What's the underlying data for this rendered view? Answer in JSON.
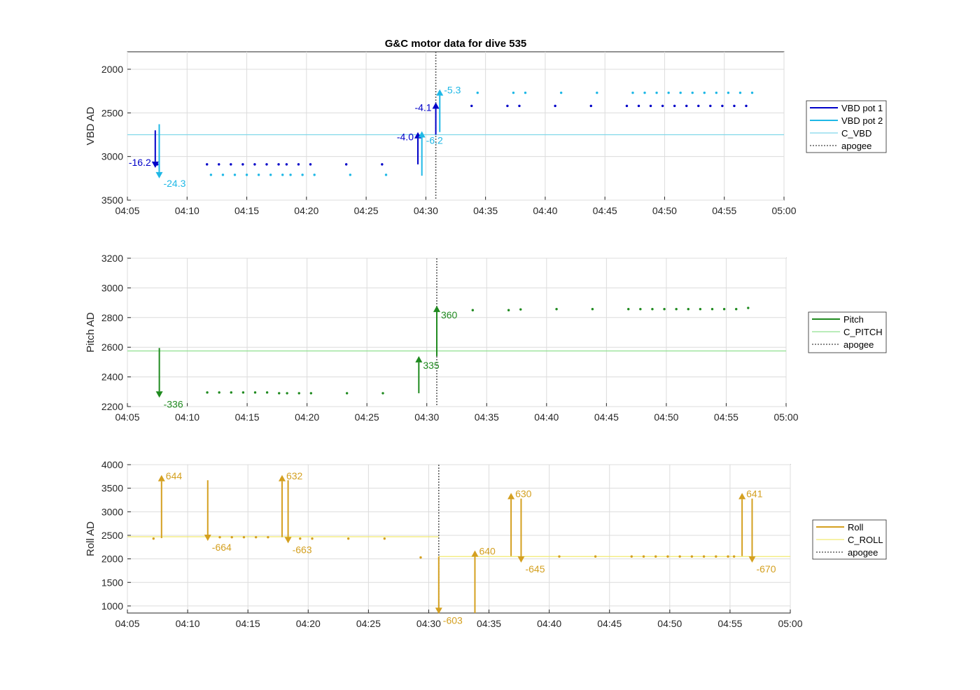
{
  "chart_data": [
    {
      "type": "scatter",
      "title": "G&C motor data for dive 535",
      "ylabel": "VBD AD",
      "ylim": [
        1800,
        3500
      ],
      "y_reversed": true,
      "yticks": [
        "2000",
        "2500",
        "3000",
        "3500"
      ],
      "xlim": [
        "04:05",
        "05:00"
      ],
      "xticks": [
        "04:05",
        "04:10",
        "04:15",
        "04:20",
        "04:25",
        "04:30",
        "04:35",
        "04:40",
        "04:45",
        "04:50",
        "04:55",
        "05:00"
      ],
      "grid": true,
      "legend_position": "right",
      "legend": [
        "VBD pot 1",
        "VBD pot 2",
        "C_VBD",
        "apogee"
      ],
      "colors": {
        "pot1": "#0000c8",
        "pot2": "#1fb8e6",
        "ref": "#7fd8ea",
        "apogee": "#606060"
      },
      "reference_value": 2750,
      "apogee_time": "04:30:50",
      "series": [
        {
          "name": "VBD pot 1",
          "x": [
            "04:07:30",
            "04:11:40",
            "04:12:40",
            "04:13:40",
            "04:14:40",
            "04:15:40",
            "04:16:40",
            "04:17:40",
            "04:18:20",
            "04:19:20",
            "04:20:20",
            "04:23:20",
            "04:26:20",
            "04:33:50",
            "04:36:50",
            "04:37:50",
            "04:40:50",
            "04:43:50",
            "04:46:50",
            "04:47:50",
            "04:48:50",
            "04:49:50",
            "04:50:50",
            "04:51:50",
            "04:52:50",
            "04:53:50",
            "04:54:50",
            "04:55:50",
            "04:56:50"
          ],
          "y": [
            3090,
            3090,
            3090,
            3090,
            3090,
            3090,
            3090,
            3090,
            3090,
            3090,
            3090,
            3090,
            3090,
            2420,
            2420,
            2420,
            2420,
            2420,
            2420,
            2420,
            2420,
            2420,
            2420,
            2420,
            2420,
            2420,
            2420,
            2420,
            2420
          ]
        },
        {
          "name": "VBD pot 2",
          "x": [
            "04:07:40",
            "04:12:00",
            "04:13:00",
            "04:14:00",
            "04:15:00",
            "04:16:00",
            "04:17:00",
            "04:18:00",
            "04:18:40",
            "04:19:40",
            "04:20:40",
            "04:23:40",
            "04:26:40",
            "04:34:20",
            "04:37:20",
            "04:38:20",
            "04:41:20",
            "04:44:20",
            "04:47:20",
            "04:48:20",
            "04:49:20",
            "04:50:20",
            "04:51:20",
            "04:52:20",
            "04:53:20",
            "04:54:20",
            "04:55:20",
            "04:56:20",
            "04:57:20"
          ],
          "y": [
            3210,
            3210,
            3210,
            3210,
            3210,
            3210,
            3210,
            3210,
            3210,
            3210,
            3210,
            3210,
            3210,
            2270,
            2270,
            2270,
            2270,
            2270,
            2270,
            2270,
            2270,
            2270,
            2270,
            2270,
            2270,
            2270,
            2270,
            2270,
            2270
          ]
        }
      ],
      "arrows": [
        {
          "series": "VBD pot 1",
          "x": "04:07:20",
          "y0": 2700,
          "y1": 3130,
          "label": "-16.2",
          "label_side": "left"
        },
        {
          "series": "VBD pot 2",
          "x": "04:07:40",
          "y0": 2630,
          "y1": 3250,
          "label": "-24.3",
          "label_side": "right"
        },
        {
          "series": "VBD pot 1",
          "x": "04:29:20",
          "y0": 3090,
          "y1": 2720,
          "label": "-4.0",
          "label_side": "left"
        },
        {
          "series": "VBD pot 2",
          "x": "04:29:40",
          "y0": 3220,
          "y1": 2710,
          "label": "-6.2",
          "label_side": "right-below"
        },
        {
          "series": "VBD pot 1",
          "x": "04:30:50",
          "y0": 2750,
          "y1": 2380,
          "label": "-4.1",
          "label_side": "left"
        },
        {
          "series": "VBD pot 2",
          "x": "04:31:10",
          "y0": 2720,
          "y1": 2230,
          "label": "-5.3",
          "label_side": "right"
        }
      ]
    },
    {
      "type": "scatter",
      "ylabel": "Pitch AD",
      "ylim": [
        2200,
        3200
      ],
      "yticks": [
        "2200",
        "2400",
        "2600",
        "2800",
        "3000",
        "3200"
      ],
      "xlim": [
        "04:05",
        "05:00"
      ],
      "xticks": [
        "04:05",
        "04:10",
        "04:15",
        "04:20",
        "04:25",
        "04:30",
        "04:35",
        "04:40",
        "04:45",
        "04:50",
        "04:55",
        "05:00"
      ],
      "grid": true,
      "legend_position": "right",
      "legend": [
        "Pitch",
        "C_PITCH",
        "apogee"
      ],
      "colors": {
        "main": "#1f8a1f",
        "ref": "#8fe08f",
        "apogee": "#606060"
      },
      "reference_value": 2575,
      "apogee_time": "04:30:50",
      "series": [
        {
          "name": "Pitch",
          "x": [
            "04:11:40",
            "04:12:40",
            "04:13:40",
            "04:14:40",
            "04:15:40",
            "04:16:40",
            "04:17:40",
            "04:18:20",
            "04:19:20",
            "04:20:20",
            "04:23:20",
            "04:26:20",
            "04:33:50",
            "04:36:50",
            "04:37:50",
            "04:40:50",
            "04:43:50",
            "04:46:50",
            "04:47:50",
            "04:48:50",
            "04:49:50",
            "04:50:50",
            "04:51:50",
            "04:52:50",
            "04:53:50",
            "04:54:50",
            "04:55:50",
            "04:56:50"
          ],
          "y": [
            2295,
            2295,
            2295,
            2295,
            2295,
            2295,
            2290,
            2290,
            2290,
            2290,
            2290,
            2290,
            2850,
            2850,
            2855,
            2857,
            2857,
            2857,
            2857,
            2857,
            2857,
            2857,
            2857,
            2857,
            2857,
            2857,
            2857,
            2865
          ]
        }
      ],
      "arrows": [
        {
          "series": "Pitch",
          "x": "04:07:40",
          "y0": 2595,
          "y1": 2260,
          "label": "-336",
          "label_side": "right-below"
        },
        {
          "series": "Pitch",
          "x": "04:29:20",
          "y0": 2290,
          "y1": 2540,
          "label": "335",
          "label_side": "right-below"
        },
        {
          "series": "Pitch",
          "x": "04:30:50",
          "y0": 2540,
          "y1": 2880,
          "label": "360",
          "label_side": "right-below"
        }
      ]
    },
    {
      "type": "scatter",
      "ylabel": "Roll AD",
      "ylim": [
        850,
        4000
      ],
      "yticks": [
        "1000",
        "1500",
        "2000",
        "2500",
        "3000",
        "3500",
        "4000"
      ],
      "xlim": [
        "04:05",
        "05:00"
      ],
      "xticks": [
        "04:05",
        "04:10",
        "04:15",
        "04:20",
        "04:25",
        "04:30",
        "04:35",
        "04:40",
        "04:45",
        "04:50",
        "04:55",
        "05:00"
      ],
      "grid": true,
      "legend_position": "right",
      "legend": [
        "Roll",
        "C_ROLL",
        "apogee"
      ],
      "colors": {
        "main": "#d4a020",
        "ref": "#f2ea70",
        "apogee": "#606060"
      },
      "apogee_time": "04:30:50",
      "reference_segments": [
        {
          "x0": "04:05",
          "x1": "04:30:50",
          "y": 2470
        },
        {
          "x0": "04:30:50",
          "x1": "05:00",
          "y": 2050
        }
      ],
      "series": [
        {
          "name": "Roll",
          "x": [
            "04:07:10",
            "04:12:40",
            "04:13:40",
            "04:14:40",
            "04:15:40",
            "04:16:40",
            "04:19:20",
            "04:20:20",
            "04:23:20",
            "04:26:20",
            "04:29:20",
            "04:40:50",
            "04:43:50",
            "04:46:50",
            "04:47:50",
            "04:48:50",
            "04:49:50",
            "04:50:50",
            "04:51:50",
            "04:52:50",
            "04:53:50",
            "04:54:50",
            "04:55:20"
          ],
          "y": [
            2430,
            2460,
            2460,
            2460,
            2460,
            2460,
            2430,
            2430,
            2430,
            2430,
            2030,
            2050,
            2050,
            2050,
            2050,
            2050,
            2050,
            2050,
            2050,
            2050,
            2050,
            2050,
            2050
          ]
        }
      ],
      "arrows": [
        {
          "series": "Roll",
          "x": "04:07:50",
          "y0": 2440,
          "y1": 3780,
          "label": "644",
          "label_side": "right"
        },
        {
          "series": "Roll",
          "x": "04:11:40",
          "y0": 3670,
          "y1": 2380,
          "label": "-664",
          "label_side": "right-below"
        },
        {
          "series": "Roll",
          "x": "04:17:50",
          "y0": 2460,
          "y1": 3780,
          "label": "632",
          "label_side": "right"
        },
        {
          "series": "Roll",
          "x": "04:18:20",
          "y0": 3670,
          "y1": 2330,
          "label": "-663",
          "label_side": "right-below"
        },
        {
          "series": "Roll",
          "x": "04:30:50",
          "y0": 2050,
          "y1": 830,
          "label": "-603",
          "label_side": "right-below"
        },
        {
          "series": "Roll",
          "x": "04:33:50",
          "y0": 850,
          "y1": 2180,
          "label": "640",
          "label_side": "right"
        },
        {
          "series": "Roll",
          "x": "04:36:50",
          "y0": 2060,
          "y1": 3400,
          "label": "630",
          "label_side": "right"
        },
        {
          "series": "Roll",
          "x": "04:37:40",
          "y0": 3280,
          "y1": 1920,
          "label": "-645",
          "label_side": "right-below"
        },
        {
          "series": "Roll",
          "x": "04:56:00",
          "y0": 2060,
          "y1": 3400,
          "label": "641",
          "label_side": "right"
        },
        {
          "series": "Roll",
          "x": "04:56:50",
          "y0": 3280,
          "y1": 1920,
          "label": "-670",
          "label_side": "right-below"
        }
      ]
    }
  ]
}
